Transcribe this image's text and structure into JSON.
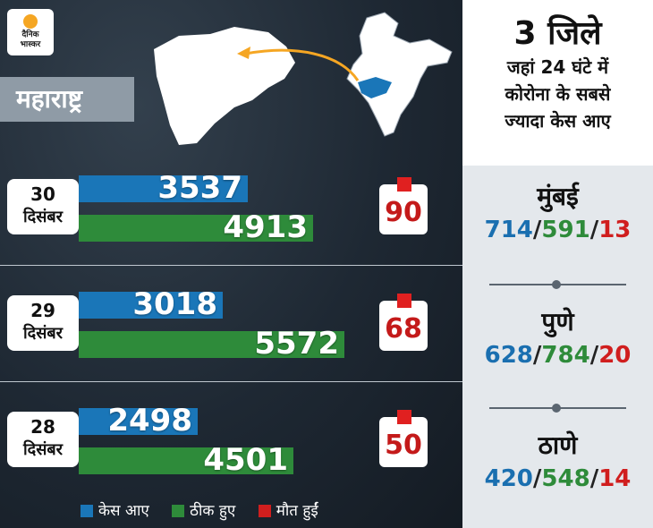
{
  "logo": {
    "line1": "दैनिक",
    "line2": "भास्कर"
  },
  "state_label": "महाराष्ट्र",
  "chart_data": {
    "type": "bar",
    "categories": [
      {
        "day": "30",
        "month": "दिसंबर"
      },
      {
        "day": "29",
        "month": "दिसंबर"
      },
      {
        "day": "28",
        "month": "दिसंबर"
      }
    ],
    "series": [
      {
        "name": "केस आए",
        "color": "#1a76b8",
        "values": [
          3537,
          3018,
          2498
        ]
      },
      {
        "name": "ठीक हुए",
        "color": "#2e8b3a",
        "values": [
          4913,
          5572,
          4501
        ]
      },
      {
        "name": "मौत हुईं",
        "color": "#d01e1e",
        "values": [
          90,
          68,
          50
        ]
      }
    ]
  },
  "rows": [
    {
      "day": "30",
      "month": "दिसंबर",
      "cases": "3537",
      "recovered": "4913",
      "deaths": "90"
    },
    {
      "day": "29",
      "month": "दिसंबर",
      "cases": "3018",
      "recovered": "5572",
      "deaths": "68"
    },
    {
      "day": "28",
      "month": "दिसंबर",
      "cases": "2498",
      "recovered": "4501",
      "deaths": "50"
    }
  ],
  "legend": {
    "cases": "केस आए",
    "recovered": "ठीक हुए",
    "deaths": "मौत हुईं"
  },
  "panel": {
    "title": "3 जिले",
    "line1": "जहां 24 घंटे में",
    "line2": "कोरोना के सबसे",
    "line3": "ज्यादा केस आए",
    "cities": [
      {
        "name": "मुंबई",
        "cases": "714",
        "recovered": "591",
        "deaths": "13"
      },
      {
        "name": "पुणे",
        "cases": "628",
        "recovered": "784",
        "deaths": "20"
      },
      {
        "name": "ठाणे",
        "cases": "420",
        "recovered": "548",
        "deaths": "14"
      }
    ]
  },
  "colors": {
    "cases": "#1a76b8",
    "recovered": "#2e8b3a",
    "deaths": "#d01e1e",
    "accent": "#f5a623"
  }
}
